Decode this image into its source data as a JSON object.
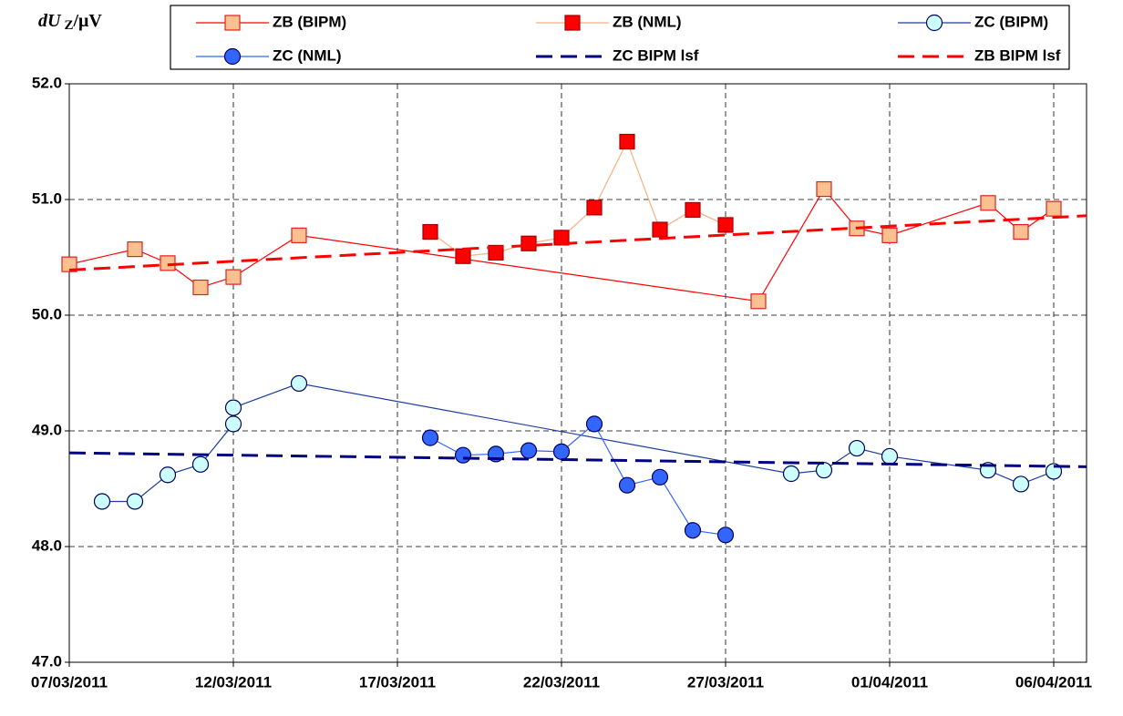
{
  "chart_data": {
    "type": "line",
    "y_label": {
      "symbol": "dU",
      "subscript": "Z",
      "unit": "/μV"
    },
    "xlim": [
      "2011-03-07",
      "2011-04-07"
    ],
    "xticks": [
      {
        "value": "2011-03-07",
        "label": "07/03/2011"
      },
      {
        "value": "2011-03-12",
        "label": "12/03/2011"
      },
      {
        "value": "2011-03-17",
        "label": "17/03/2011"
      },
      {
        "value": "2011-03-22",
        "label": "22/03/2011"
      },
      {
        "value": "2011-03-27",
        "label": "27/03/2011"
      },
      {
        "value": "2011-04-01",
        "label": "01/04/2011"
      },
      {
        "value": "2011-04-06",
        "label": "06/04/2011"
      }
    ],
    "ylim": [
      47,
      52
    ],
    "yticks": [
      {
        "value": 47,
        "label": "47.0"
      },
      {
        "value": 48,
        "label": "48.0"
      },
      {
        "value": 49,
        "label": "49.0"
      },
      {
        "value": 50,
        "label": "50.0"
      },
      {
        "value": 51,
        "label": "51.0"
      },
      {
        "value": 52,
        "label": "52.0"
      }
    ],
    "grid": true,
    "series": [
      {
        "name": "ZB (BIPM)",
        "color": "#ff0000",
        "marker": "square",
        "marker_fill": "#fbc08f",
        "marker_edge": "#e02020",
        "dashed": false,
        "x": [
          "2011-03-07",
          "2011-03-09",
          "2011-03-10",
          "2011-03-11",
          "2011-03-12",
          "2011-03-14",
          "2011-03-28",
          "2011-03-30",
          "2011-03-31",
          "2011-04-01",
          "2011-04-04",
          "2011-04-05",
          "2011-04-06"
        ],
        "values": [
          50.44,
          50.57,
          50.45,
          50.24,
          50.33,
          50.69,
          50.12,
          51.09,
          50.75,
          50.69,
          50.97,
          50.72,
          50.92
        ]
      },
      {
        "name": "ZB (NML)",
        "color": "#f4b183",
        "marker": "square",
        "marker_fill": "#ff0000",
        "marker_edge": "#a00000",
        "dashed": false,
        "x": [
          "2011-03-18",
          "2011-03-19",
          "2011-03-20",
          "2011-03-21",
          "2011-03-22",
          "2011-03-23",
          "2011-03-24",
          "2011-03-25",
          "2011-03-26",
          "2011-03-27"
        ],
        "values": [
          50.72,
          50.51,
          50.54,
          50.62,
          50.67,
          50.93,
          51.5,
          50.74,
          50.91,
          50.78
        ]
      },
      {
        "name": "ZC (BIPM)",
        "color": "#1f3f9f",
        "marker": "circle",
        "marker_fill": "#ccffff",
        "marker_edge": "#000060",
        "dashed": false,
        "x": [
          "2011-03-08",
          "2011-03-09",
          "2011-03-10",
          "2011-03-11",
          "2011-03-12",
          "2011-03-12",
          "2011-03-14",
          "2011-03-29",
          "2011-03-30",
          "2011-03-31",
          "2011-04-01",
          "2011-04-04",
          "2011-04-05",
          "2011-04-06"
        ],
        "values": [
          48.39,
          48.39,
          48.62,
          48.71,
          49.06,
          49.2,
          49.41,
          48.63,
          48.66,
          48.85,
          48.78,
          48.66,
          48.54,
          48.65
        ]
      },
      {
        "name": "ZC (NML)",
        "color": "#3366ff",
        "marker": "circle",
        "marker_fill": "#3366ff",
        "marker_edge": "#000060",
        "dashed": false,
        "x": [
          "2011-03-18",
          "2011-03-19",
          "2011-03-20",
          "2011-03-21",
          "2011-03-22",
          "2011-03-23",
          "2011-03-24",
          "2011-03-25",
          "2011-03-26",
          "2011-03-27"
        ],
        "values": [
          48.94,
          48.79,
          48.8,
          48.83,
          48.82,
          49.06,
          48.53,
          48.6,
          48.14,
          48.1
        ]
      },
      {
        "name": "ZC BIPM lsf",
        "color": "#000080",
        "marker": null,
        "dashed": true,
        "x": [
          "2011-03-07",
          "2011-04-07"
        ],
        "values": [
          48.81,
          48.69
        ]
      },
      {
        "name": "ZB BIPM lsf",
        "color": "#ff0000",
        "marker": null,
        "dashed": true,
        "x": [
          "2011-03-07",
          "2011-04-07"
        ],
        "values": [
          50.39,
          50.86
        ]
      }
    ]
  }
}
